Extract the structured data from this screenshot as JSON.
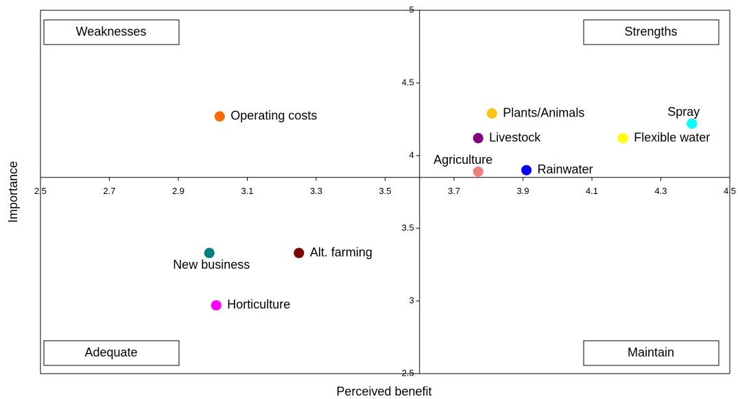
{
  "chart_data": {
    "type": "scatter",
    "x_label": "Perceived benefit",
    "y_label": "Importance",
    "annotations": [
      "Weaknesses",
      "Strengths",
      "Adequate",
      "Maintain"
    ],
    "labels": [
      "Operating costs",
      "Plants/Animals",
      "Spray",
      "Livestock",
      "Flexible water",
      "Agriculture",
      "Rainwater",
      "New business",
      "Alt. farming",
      "Horticulture"
    ],
    "x": [
      3.02,
      3.81,
      4.39,
      3.77,
      4.19,
      3.77,
      3.91,
      2.99,
      3.25,
      3.01
    ],
    "values": [
      4.27,
      4.29,
      4.22,
      4.12,
      4.12,
      3.89,
      3.9,
      3.33,
      3.33,
      2.97
    ],
    "colors": [
      "#ff6a00",
      "#ffc20e",
      "#00ffff",
      "#800080",
      "#ffff00",
      "#f08080",
      "#0000ff",
      "#008080",
      "#800000",
      "#ff00ff"
    ],
    "xlim": [
      2.5,
      4.5
    ],
    "ylim": [
      2.5,
      5
    ],
    "xticks": [
      2.5,
      2.7,
      2.9,
      3.1,
      3.3,
      3.5,
      3.7,
      3.9,
      4.1,
      4.3,
      4.5
    ],
    "yticks": [
      2.5,
      3,
      3.5,
      4,
      4.5,
      5
    ],
    "x_axis_at": 3.85,
    "y_axis_at": 3.6
  }
}
